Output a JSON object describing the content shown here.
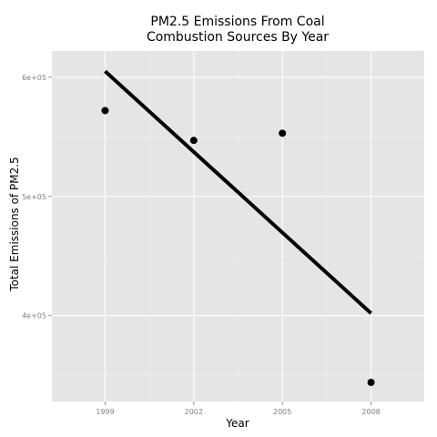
{
  "chart_data": {
    "type": "scatter",
    "title_lines": [
      "PM2.5 Emissions From Coal",
      "Combustion Sources By Year"
    ],
    "xlabel": "Year",
    "ylabel": "Total Emissions of PM2.5",
    "x_ticks": [
      1999,
      2002,
      2005,
      2008
    ],
    "x_tick_labels": [
      "1999",
      "2002",
      "2005",
      "2008"
    ],
    "y_ticks": [
      400000,
      500000,
      600000
    ],
    "y_tick_labels": [
      "4e+05",
      "5e+05",
      "6e+05"
    ],
    "xlim": [
      1997.2,
      2009.8
    ],
    "ylim": [
      328000,
      622000
    ],
    "grid": true,
    "background_color": "#e5e5e5",
    "grid_color": "#ffffff",
    "point_color": "#000000",
    "line_color": "#000000",
    "points": [
      {
        "x": 1999,
        "y": 572000
      },
      {
        "x": 2002,
        "y": 547000
      },
      {
        "x": 2005,
        "y": 553000
      },
      {
        "x": 2008,
        "y": 344000
      }
    ],
    "trend_line": {
      "x": [
        1999,
        2008
      ],
      "y": [
        605000,
        402000
      ]
    }
  }
}
